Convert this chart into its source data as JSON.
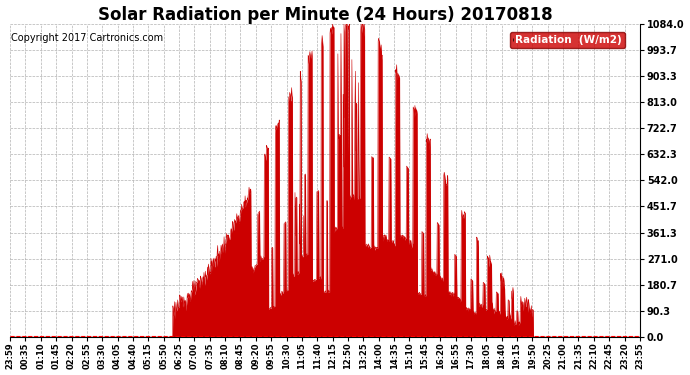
{
  "title": "Solar Radiation per Minute (24 Hours) 20170818",
  "copyright_text": "Copyright 2017 Cartronics.com",
  "legend_label": "Radiation  (W/m2)",
  "y_ticks": [
    0.0,
    90.3,
    180.7,
    271.0,
    361.3,
    451.7,
    542.0,
    632.3,
    722.7,
    813.0,
    903.3,
    993.7,
    1084.0
  ],
  "y_max": 1084.0,
  "x_tick_labels": [
    "23:59",
    "00:35",
    "01:10",
    "01:45",
    "02:20",
    "02:55",
    "03:30",
    "04:05",
    "04:40",
    "05:15",
    "05:50",
    "06:25",
    "07:00",
    "07:35",
    "08:10",
    "08:45",
    "09:20",
    "09:55",
    "10:30",
    "11:05",
    "11:40",
    "12:15",
    "12:50",
    "13:25",
    "14:00",
    "14:35",
    "15:10",
    "15:45",
    "16:20",
    "16:55",
    "17:30",
    "18:05",
    "18:40",
    "19:15",
    "19:50",
    "20:25",
    "21:00",
    "21:35",
    "22:10",
    "22:45",
    "23:20",
    "23:55"
  ],
  "fill_color": "#cc0000",
  "bg_color": "#ffffff",
  "grid_color": "#aaaaaa",
  "legend_bg": "#cc0000",
  "legend_text_color": "#ffffff",
  "title_fontsize": 12,
  "copyright_fontsize": 7,
  "axis_fontsize": 6,
  "ytick_fontsize": 7,
  "sunrise_min": 370,
  "sunset_min": 1195,
  "peak_min": 770,
  "peak_val": 1084.0
}
